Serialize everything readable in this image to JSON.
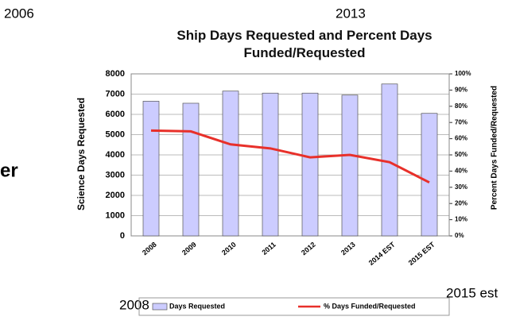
{
  "chart_data": {
    "type": "bar",
    "title": "Ship Days Requested and Percent Days Funded/Requested",
    "ylabel": "Science Days Requested",
    "y2label": "Percent Days Funded/Requested",
    "categories": [
      "2008",
      "2009",
      "2010",
      "2011",
      "2012",
      "2013",
      "2014 EST",
      "2015 EST"
    ],
    "series": [
      {
        "name": "Days Requested",
        "type": "bar",
        "color": "#ccccff",
        "values": [
          6650,
          6550,
          7150,
          7050,
          7050,
          6950,
          7500,
          6050
        ]
      },
      {
        "name": "% Days Funded/Requested",
        "type": "line",
        "axis": "y2",
        "color": "#e8302a",
        "values": [
          65,
          64.5,
          56.5,
          54,
          48.5,
          50,
          45.5,
          33
        ]
      }
    ],
    "ylim": [
      0,
      8000
    ],
    "yticks": [
      0,
      1000,
      2000,
      3000,
      4000,
      5000,
      6000,
      7000,
      8000
    ],
    "y2lim": [
      0,
      100
    ],
    "y2ticks": [
      {
        "value": 0,
        "label": "0%"
      },
      {
        "value": 10,
        "label": "10%"
      },
      {
        "value": 20,
        "label": "20%"
      },
      {
        "value": 30,
        "label": "30%"
      },
      {
        "value": 40,
        "label": "40%"
      },
      {
        "value": 50,
        "label": "50%"
      },
      {
        "value": 60,
        "label": "60%"
      },
      {
        "value": 70,
        "label": "70%"
      },
      {
        "value": 80,
        "label": "80%"
      },
      {
        "value": 90,
        "label": "90%"
      },
      {
        "value": 100,
        "label": "100%"
      }
    ],
    "grid": true,
    "legend": "bottom",
    "annotations": [
      "2006",
      "2013",
      "er",
      "2008",
      "2015 est"
    ]
  }
}
